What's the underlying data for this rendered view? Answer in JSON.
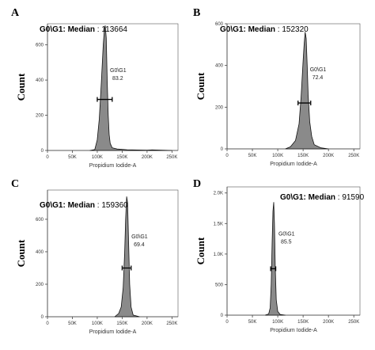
{
  "chart_data": [
    {
      "type": "area",
      "panel": "A",
      "header_label": "G0\\G1",
      "header_stat": "Median",
      "header_value": ": 113664",
      "ylabel": "Count",
      "xlabel": "Propidium Iodide-A",
      "xlim": [
        0,
        262144
      ],
      "ylim": [
        0,
        720
      ],
      "x_ticks": [
        0,
        50000,
        100000,
        150000,
        200000,
        250000
      ],
      "x_tick_labels": [
        "0",
        "50K",
        "100K",
        "150K",
        "200K",
        "250K"
      ],
      "y_ticks": [
        0,
        200,
        400,
        600
      ],
      "y_tick_labels": [
        "0",
        "200",
        "400",
        "600"
      ],
      "gate_label": "G0\\G1",
      "gate_value": "83.2",
      "gate_range": [
        100000,
        130000
      ],
      "gate_y": 290,
      "x": [
        85000,
        95000,
        100000,
        104000,
        108000,
        112000,
        114000,
        116000,
        118000,
        120000,
        122000,
        124000,
        126000,
        130000,
        140000,
        160000,
        200000,
        210000,
        250000
      ],
      "y": [
        0,
        5,
        60,
        180,
        380,
        600,
        680,
        710,
        640,
        400,
        200,
        90,
        40,
        15,
        8,
        4,
        2,
        3,
        0
      ]
    },
    {
      "type": "area",
      "panel": "B",
      "header_label": "G0\\G1",
      "header_stat": "Median",
      "header_value": ": 152320",
      "ylabel": "Count",
      "xlabel": "Propidium Iodide-A",
      "xlim": [
        0,
        262144
      ],
      "ylim": [
        0,
        600
      ],
      "x_ticks": [
        0,
        50000,
        100000,
        150000,
        200000,
        250000
      ],
      "x_tick_labels": [
        "0",
        "50K",
        "100K",
        "150K",
        "200K",
        "250K"
      ],
      "y_ticks": [
        0,
        200,
        400,
        600
      ],
      "y_tick_labels": [
        "0",
        "200",
        "400",
        "600"
      ],
      "gate_label": "G0\\G1",
      "gate_value": "72.4",
      "gate_range": [
        140000,
        165000
      ],
      "gate_y": 220,
      "x": [
        115000,
        125000,
        135000,
        142000,
        146000,
        150000,
        152000,
        154000,
        156000,
        158000,
        160000,
        163000,
        167000,
        172000,
        185000,
        200000
      ],
      "y": [
        0,
        10,
        40,
        120,
        250,
        420,
        500,
        560,
        530,
        400,
        260,
        130,
        60,
        20,
        5,
        0
      ]
    },
    {
      "type": "area",
      "panel": "C",
      "header_label": "G0\\G1",
      "header_stat": "Median",
      "header_value": ": 159360",
      "ylabel": "Count",
      "xlabel": "Propidium Iodide-A",
      "xlim": [
        0,
        262144
      ],
      "ylim": [
        0,
        780
      ],
      "x_ticks": [
        0,
        50000,
        100000,
        150000,
        200000,
        250000
      ],
      "x_tick_labels": [
        "0",
        "50K",
        "100K",
        "150K",
        "200K",
        "250K"
      ],
      "y_ticks": [
        0,
        200,
        400,
        600
      ],
      "y_tick_labels": [
        "0",
        "200",
        "400",
        "600"
      ],
      "gate_label": "G0\\G1",
      "gate_value": "69.4",
      "gate_range": [
        150000,
        168000
      ],
      "gate_y": 300,
      "x": [
        135000,
        143000,
        148000,
        152000,
        155000,
        157000,
        159000,
        161000,
        163000,
        165000,
        168000,
        172000,
        185000
      ],
      "y": [
        0,
        20,
        60,
        180,
        400,
        600,
        740,
        700,
        450,
        200,
        60,
        10,
        0
      ]
    },
    {
      "type": "area",
      "panel": "D",
      "header_label": "G0\\G1",
      "header_stat": "Median",
      "header_value": ": 91590",
      "ylabel": "Count",
      "xlabel": "Propidium Iodide-A",
      "xlim": [
        0,
        262144
      ],
      "ylim": [
        0,
        2100
      ],
      "x_ticks": [
        0,
        50000,
        100000,
        150000,
        200000,
        250000
      ],
      "x_tick_labels": [
        "0",
        "50K",
        "100K",
        "150K",
        "200K",
        "250K"
      ],
      "y_ticks": [
        0,
        500,
        1000,
        1500,
        2000
      ],
      "y_tick_labels": [
        "0",
        "500",
        "1.0K",
        "1.5K",
        "2.0K"
      ],
      "gate_label": "G0\\G1",
      "gate_value": "85.5",
      "gate_range": [
        86000,
        96000
      ],
      "gate_y": 760,
      "x": [
        75000,
        82000,
        85000,
        87000,
        89000,
        90500,
        92000,
        93500,
        95000,
        97000,
        100000,
        105000,
        115000
      ],
      "y": [
        0,
        20,
        120,
        500,
        1200,
        1700,
        1850,
        1500,
        800,
        250,
        60,
        10,
        0
      ]
    }
  ]
}
